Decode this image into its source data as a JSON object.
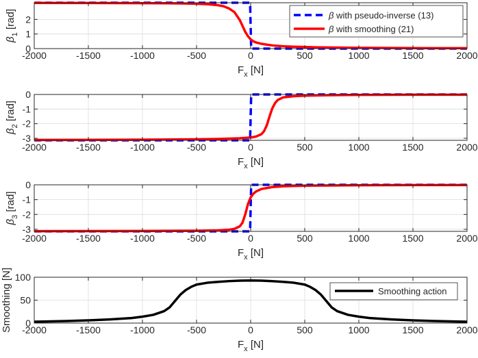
{
  "chart_data": [
    {
      "type": "line",
      "ylabel_symbol": "β",
      "ylabel_sub": "1",
      "ylabel_unit": " [rad]",
      "xlabel_main": "F",
      "xlabel_sub": "x",
      "xlabel_unit": " [N]",
      "xlim": [
        -2000,
        2000
      ],
      "ylim": [
        0,
        3.1416
      ],
      "xticks": [
        -2000,
        -1500,
        -1000,
        -500,
        0,
        500,
        1000,
        1500,
        2000
      ],
      "xtick_labels": [
        "-2000",
        "-1500",
        "-1000",
        "-500",
        "0",
        "500",
        "1000",
        "1500",
        "2000"
      ],
      "yticks": [
        0,
        1,
        2
      ],
      "ytick_labels": [
        "0",
        "1",
        "2"
      ],
      "grid": true,
      "legend_position": "top-right",
      "series": [
        {
          "name_symbol": "β",
          "name": " with pseudo-inverse (13)",
          "color": "#0000ff",
          "style": "dashed",
          "x": [
            -2000,
            -5,
            -5,
            5,
            5,
            2000
          ],
          "y": [
            3.1416,
            3.1416,
            3.1416,
            0,
            0,
            0
          ]
        },
        {
          "name_symbol": "β",
          "name": " with smoothing (21)",
          "color": "#ff0000",
          "style": "solid",
          "x": [
            -2000,
            -1500,
            -1000,
            -800,
            -600,
            -500,
            -400,
            -300,
            -250,
            -200,
            -150,
            -100,
            -75,
            -50,
            -25,
            0,
            25,
            50,
            100,
            150,
            200,
            300,
            400,
            500,
            600,
            800,
            1000,
            1500,
            2000
          ],
          "y": [
            3.13,
            3.125,
            3.115,
            3.105,
            3.09,
            3.07,
            3.04,
            2.97,
            2.9,
            2.75,
            2.5,
            1.95,
            1.55,
            1.15,
            0.85,
            0.63,
            0.5,
            0.42,
            0.33,
            0.27,
            0.22,
            0.16,
            0.13,
            0.11,
            0.09,
            0.07,
            0.05,
            0.035,
            0.027
          ]
        }
      ]
    },
    {
      "type": "line",
      "ylabel_symbol": "β",
      "ylabel_sub": "2",
      "ylabel_unit": " [rad]",
      "xlabel_main": "F",
      "xlabel_sub": "x",
      "xlabel_unit": " [N]",
      "xlim": [
        -2000,
        2000
      ],
      "ylim": [
        -3.1416,
        0
      ],
      "xticks": [
        -2000,
        -1500,
        -1000,
        -500,
        0,
        500,
        1000,
        1500,
        2000
      ],
      "xtick_labels": [
        "-2000",
        "-1500",
        "-1000",
        "-500",
        "0",
        "500",
        "1000",
        "1500",
        "2000"
      ],
      "yticks": [
        0,
        -1,
        -2,
        -3
      ],
      "ytick_labels": [
        "0",
        "-1",
        "-2",
        "-3"
      ],
      "grid": true,
      "series": [
        {
          "name": "pseudo-inverse",
          "color": "#0000ff",
          "style": "dashed",
          "x": [
            -2000,
            -5,
            -5,
            5,
            5,
            2000
          ],
          "y": [
            -3.1416,
            -3.1416,
            -3.1416,
            0,
            0,
            0
          ]
        },
        {
          "name": "smoothing",
          "color": "#ff0000",
          "style": "solid",
          "x": [
            -2000,
            -1000,
            -500,
            -300,
            -100,
            0,
            50,
            100,
            125,
            150,
            175,
            200,
            225,
            250,
            300,
            400,
            500,
            700,
            1000,
            1500,
            2000
          ],
          "y": [
            -3.12,
            -3.1,
            -3.07,
            -3.05,
            -3.0,
            -2.95,
            -2.88,
            -2.72,
            -2.5,
            -2.1,
            -1.5,
            -0.95,
            -0.6,
            -0.38,
            -0.2,
            -0.12,
            -0.08,
            -0.05,
            -0.03,
            -0.02,
            -0.015
          ]
        }
      ]
    },
    {
      "type": "line",
      "ylabel_symbol": "β",
      "ylabel_sub": "3",
      "ylabel_unit": " [rad]",
      "xlabel_main": "F",
      "xlabel_sub": "x",
      "xlabel_unit": " [N]",
      "xlim": [
        -2000,
        2000
      ],
      "ylim": [
        -3.1416,
        0
      ],
      "xticks": [
        -2000,
        -1500,
        -1000,
        -500,
        0,
        500,
        1000,
        1500,
        2000
      ],
      "xtick_labels": [
        "-2000",
        "-1500",
        "-1000",
        "-500",
        "0",
        "500",
        "1000",
        "1500",
        "2000"
      ],
      "yticks": [
        0,
        -1,
        -2,
        -3
      ],
      "ytick_labels": [
        "0",
        "-1",
        "-2",
        "-3"
      ],
      "grid": true,
      "series": [
        {
          "name": "pseudo-inverse",
          "color": "#0000ff",
          "style": "dashed",
          "x": [
            -2000,
            -5,
            -5,
            5,
            5,
            2000
          ],
          "y": [
            -3.1416,
            -3.1416,
            -3.1416,
            0,
            0,
            0
          ]
        },
        {
          "name": "smoothing",
          "color": "#ff0000",
          "style": "solid",
          "x": [
            -2000,
            -1000,
            -500,
            -300,
            -200,
            -150,
            -100,
            -75,
            -50,
            -25,
            0,
            25,
            50,
            100,
            200,
            300,
            500,
            1000,
            1500,
            2000
          ],
          "y": [
            -3.13,
            -3.12,
            -3.1,
            -3.07,
            -3.03,
            -2.97,
            -2.8,
            -2.55,
            -2.0,
            -1.3,
            -0.85,
            -0.6,
            -0.45,
            -0.28,
            -0.15,
            -0.1,
            -0.06,
            -0.03,
            -0.02,
            -0.015
          ]
        }
      ]
    },
    {
      "type": "line",
      "ylabel": "Smoothing [N]",
      "xlabel_main": "F",
      "xlabel_sub": "x",
      "xlabel_unit": " [N]",
      "xlim": [
        -2000,
        2000
      ],
      "ylim": [
        0,
        100
      ],
      "xticks": [
        -2000,
        -1500,
        -1000,
        -500,
        0,
        500,
        1000,
        1500,
        2000
      ],
      "xtick_labels": [
        "-2000",
        "-1500",
        "-1000",
        "-500",
        "0",
        "500",
        "1000",
        "1500",
        "2000"
      ],
      "yticks": [
        0,
        50,
        100
      ],
      "ytick_labels": [
        "0",
        "50",
        "100"
      ],
      "grid": true,
      "legend_position": "top-right",
      "series": [
        {
          "name": "Smoothing action",
          "color": "#000000",
          "style": "solid",
          "x": [
            -2000,
            -1700,
            -1500,
            -1300,
            -1100,
            -1000,
            -900,
            -800,
            -750,
            -700,
            -650,
            -600,
            -550,
            -500,
            -400,
            -300,
            -200,
            -100,
            0,
            100,
            200,
            300,
            400,
            500,
            550,
            600,
            650,
            700,
            750,
            800,
            900,
            1000,
            1100,
            1300,
            1500,
            1700,
            2000
          ],
          "y": [
            3,
            4.5,
            6,
            8,
            11,
            14,
            18,
            26,
            34,
            48,
            62,
            72,
            79,
            84,
            88,
            90,
            91.5,
            92.5,
            93,
            92.5,
            91.5,
            90,
            88,
            84,
            79,
            72,
            62,
            48,
            34,
            26,
            18,
            14,
            11,
            8,
            6,
            4.5,
            3
          ]
        }
      ]
    }
  ]
}
